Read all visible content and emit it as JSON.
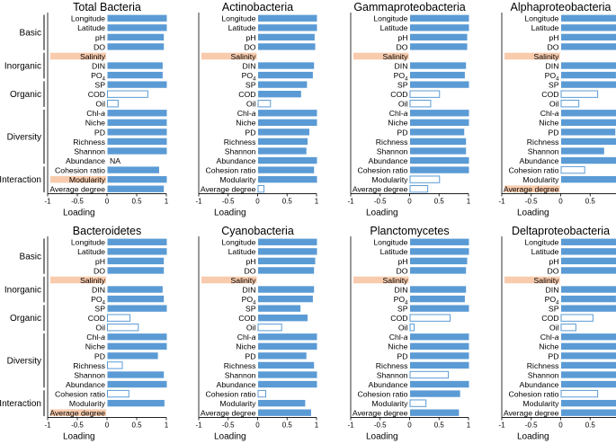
{
  "figure": {
    "row_labels": [
      "Longitude",
      "Latitude",
      "pH",
      "DO",
      "Salinity",
      "DIN",
      "PO4",
      "SP",
      "COD",
      "Oil",
      "Chl-a",
      "Niche",
      "PD",
      "Richness",
      "Shannon",
      "Abundance",
      "Cohesion ratio",
      "Modularity",
      "Average degree"
    ],
    "groups": [
      {
        "name": "Basic",
        "rows": [
          0,
          3
        ]
      },
      {
        "name": "Inorganic",
        "rows": [
          4,
          6
        ]
      },
      {
        "name": "Organic",
        "rows": [
          7,
          9
        ]
      },
      {
        "name": "Diversity",
        "rows": [
          10,
          15
        ]
      },
      {
        "name": "Interaction",
        "rows": [
          16,
          18
        ]
      }
    ],
    "xlabel": "Loading",
    "xticks": [
      "-1",
      "-0.5",
      "0",
      "0.5",
      "1"
    ],
    "na_label": "NA",
    "colors": {
      "positive": "#5b9bd5",
      "open_edge": "#5b9bd5",
      "highlight": "#f8cbad",
      "axis": "#000000"
    }
  },
  "chart_data": [
    {
      "type": "bar",
      "orientation": "horizontal",
      "title": "Total Bacteria",
      "xlabel": "Loading",
      "xlim": [
        -1,
        1
      ],
      "values": [
        1.0,
        1.0,
        0.95,
        0.95,
        null,
        0.93,
        0.93,
        1.0,
        0.68,
        0.18,
        1.0,
        1.0,
        1.0,
        1.0,
        1.0,
        null,
        0.87,
        1.0,
        0.95
      ],
      "significant": [
        true,
        true,
        true,
        true,
        false,
        true,
        true,
        true,
        false,
        false,
        true,
        true,
        true,
        true,
        true,
        false,
        true,
        true,
        true
      ],
      "highlighted": [
        "Salinity",
        "Modularity"
      ],
      "na_rows": [
        "Abundance"
      ]
    },
    {
      "type": "bar",
      "orientation": "horizontal",
      "title": "Actinobacteria",
      "xlabel": "Loading",
      "xlim": [
        -1,
        1
      ],
      "values": [
        1.0,
        1.0,
        0.96,
        0.97,
        null,
        0.95,
        0.93,
        0.83,
        0.73,
        0.21,
        1.0,
        1.0,
        0.87,
        0.84,
        0.82,
        1.0,
        0.95,
        1.0,
        0.1
      ],
      "significant": [
        true,
        true,
        true,
        true,
        false,
        true,
        true,
        true,
        true,
        false,
        true,
        true,
        true,
        true,
        true,
        true,
        true,
        true,
        false
      ],
      "highlighted": [
        "Salinity"
      ],
      "na_rows": []
    },
    {
      "type": "bar",
      "orientation": "horizontal",
      "title": "Gammaproteobacteria",
      "xlabel": "Loading",
      "xlim": [
        -1,
        1
      ],
      "values": [
        1.0,
        1.0,
        0.97,
        0.97,
        null,
        0.95,
        0.93,
        1.0,
        0.5,
        0.35,
        1.0,
        1.0,
        0.92,
        0.95,
        0.95,
        1.0,
        1.0,
        0.5,
        0.3
      ],
      "significant": [
        true,
        true,
        true,
        true,
        false,
        true,
        true,
        true,
        false,
        false,
        true,
        true,
        true,
        true,
        true,
        true,
        true,
        false,
        false
      ],
      "highlighted": [
        "Salinity"
      ],
      "na_rows": []
    },
    {
      "type": "bar",
      "orientation": "horizontal",
      "title": "Alphaproteobacteria",
      "xlabel": "Loading",
      "xlim": [
        -1,
        1
      ],
      "values": [
        1.0,
        1.0,
        0.97,
        0.97,
        null,
        0.95,
        0.93,
        1.0,
        0.62,
        0.3,
        1.0,
        1.0,
        0.92,
        0.95,
        0.73,
        1.0,
        0.4,
        1.0,
        null
      ],
      "significant": [
        true,
        true,
        true,
        true,
        false,
        true,
        true,
        true,
        false,
        false,
        true,
        true,
        true,
        true,
        true,
        true,
        false,
        true,
        false
      ],
      "highlighted": [
        "Salinity",
        "Average degree"
      ],
      "na_rows": []
    },
    {
      "type": "bar",
      "orientation": "horizontal",
      "title": "Bacteroidetes",
      "xlabel": "Loading",
      "xlim": [
        -1,
        1
      ],
      "values": [
        1.0,
        1.0,
        0.95,
        0.95,
        null,
        0.93,
        0.95,
        1.0,
        0.38,
        0.52,
        1.0,
        1.0,
        0.85,
        0.25,
        0.95,
        1.0,
        0.36,
        0.96,
        null
      ],
      "significant": [
        true,
        true,
        true,
        true,
        false,
        true,
        true,
        true,
        false,
        false,
        true,
        true,
        true,
        false,
        true,
        true,
        false,
        true,
        false
      ],
      "highlighted": [
        "Salinity",
        "Average degree"
      ],
      "na_rows": []
    },
    {
      "type": "bar",
      "orientation": "horizontal",
      "title": "Cyanobacteria",
      "xlabel": "Loading",
      "xlim": [
        -1,
        1
      ],
      "values": [
        1.0,
        1.0,
        0.97,
        0.95,
        null,
        0.95,
        0.93,
        0.72,
        0.84,
        0.4,
        1.0,
        1.0,
        0.82,
        0.95,
        1.0,
        1.0,
        0.13,
        0.8,
        0.9
      ],
      "significant": [
        true,
        true,
        true,
        true,
        false,
        true,
        true,
        true,
        true,
        false,
        true,
        true,
        true,
        true,
        true,
        true,
        false,
        true,
        true
      ],
      "highlighted": [
        "Salinity"
      ],
      "na_rows": []
    },
    {
      "type": "bar",
      "orientation": "horizontal",
      "title": "Planctomycetes",
      "xlabel": "Loading",
      "xlim": [
        -1,
        1
      ],
      "values": [
        1.0,
        1.0,
        0.97,
        0.95,
        null,
        0.95,
        0.93,
        1.0,
        0.68,
        0.07,
        1.0,
        1.0,
        1.0,
        1.0,
        0.65,
        1.0,
        0.85,
        0.27,
        0.83
      ],
      "significant": [
        true,
        true,
        true,
        true,
        false,
        true,
        true,
        true,
        false,
        false,
        true,
        true,
        true,
        true,
        false,
        true,
        true,
        false,
        true
      ],
      "highlighted": [
        "Salinity"
      ],
      "na_rows": []
    },
    {
      "type": "bar",
      "orientation": "horizontal",
      "title": "Deltaproteobacteria",
      "xlabel": "Loading",
      "xlim": [
        -1,
        1
      ],
      "values": [
        1.0,
        1.0,
        0.97,
        0.97,
        null,
        0.95,
        0.93,
        1.0,
        0.54,
        0.25,
        1.0,
        1.0,
        1.0,
        1.0,
        0.98,
        1.0,
        0.62,
        1.0,
        1.0
      ],
      "significant": [
        true,
        true,
        true,
        true,
        false,
        true,
        true,
        true,
        false,
        false,
        true,
        true,
        true,
        true,
        true,
        true,
        false,
        true,
        true
      ],
      "highlighted": [
        "Salinity"
      ],
      "na_rows": []
    }
  ]
}
